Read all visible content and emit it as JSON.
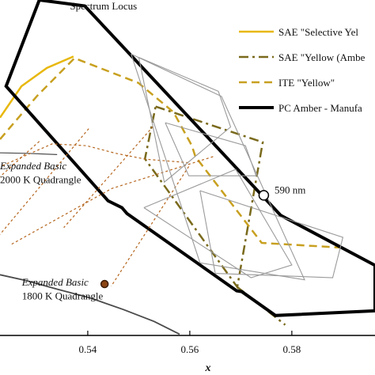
{
  "chart_data": {
    "type": "line",
    "title": "",
    "xlabel": "x",
    "ylabel": "",
    "xlim": [
      0.5228,
      0.5963
    ],
    "ylim": [
      0.3849,
      0.4639
    ],
    "x_ticks": [
      {
        "value": 0.54,
        "label": "0.54"
      },
      {
        "value": 0.56,
        "label": "0.56"
      },
      {
        "value": 0.58,
        "label": "0.58"
      }
    ],
    "legend_position": "top-right",
    "colors": {
      "sae_selective_yellow": "#e8b80c",
      "sae_yellow": "#7a6a1c",
      "ite_yellow": "#c8a020",
      "pc_amber": "#000000",
      "quadrangle": "#b5651d",
      "spectrum_locus": "#000000",
      "planckian": "#4a4a4a",
      "thin_boxes": "#9a9a9a",
      "marker_1800": "#8b4513"
    },
    "legend": [
      {
        "label": "SAE \"Selective Yel",
        "style": "solid",
        "color_key": "sae_selective_yellow",
        "width": 2.5
      },
      {
        "label": "SAE \"Yellow (Ambe",
        "style": "dashdot",
        "color_key": "sae_yellow",
        "width": 2.5
      },
      {
        "label": "ITE \"Yellow\"",
        "style": "dashed",
        "color_key": "ite_yellow",
        "width": 2.5
      },
      {
        "label": "PC Amber - Manufa",
        "style": "solid",
        "color_key": "pc_amber",
        "width": 4
      }
    ],
    "annotations": [
      {
        "text": "Spectrum Locus",
        "x": 0.5365,
        "y": 0.4617,
        "italic": false
      },
      {
        "text": "590 nm",
        "x": 0.5766,
        "y": 0.4183,
        "italic": false
      },
      {
        "text": "Expanded Basic",
        "x": 0.5228,
        "y": 0.424,
        "italic": true
      },
      {
        "text": "2000 K Quadrangle",
        "x": 0.5228,
        "y": 0.4208,
        "italic": false
      },
      {
        "text": "Expanded Basic",
        "x": 0.5271,
        "y": 0.3966,
        "italic": true
      },
      {
        "text": "1800 K Quadrangle",
        "x": 0.5271,
        "y": 0.3934,
        "italic": false
      }
    ],
    "series": [
      {
        "name": "SAE \"Selective Yellow\"",
        "style": "solid",
        "color_key": "sae_selective_yellow",
        "width": 2.5,
        "x": [
          0.5228,
          0.527,
          0.532,
          0.5372
        ],
        "y": [
          0.4362,
          0.4436,
          0.4479,
          0.4506
        ]
      },
      {
        "name": "SAE \"Yellow (Amber)\"",
        "style": "dashdot",
        "color_key": "sae_yellow",
        "width": 2.5,
        "x": [
          0.5533,
          0.5743,
          0.5693,
          0.5512,
          0.5533
        ],
        "y": [
          0.4388,
          0.4304,
          0.3963,
          0.4265,
          0.4388
        ]
      },
      {
        "name": "SAE \"Yellow (Amber)\" lower",
        "style": "dashdot",
        "color_key": "sae_yellow",
        "width": 2.5,
        "x": [
          0.5693,
          0.5787
        ],
        "y": [
          0.3963,
          0.3874
        ]
      },
      {
        "name": "ITE \"Yellow\"",
        "style": "dashed",
        "color_key": "ite_yellow",
        "width": 2.5,
        "x": [
          0.5228,
          0.53,
          0.5374,
          0.5499,
          0.5568,
          0.5604,
          0.5611,
          0.5741,
          0.5894
        ],
        "y": [
          0.4311,
          0.4412,
          0.4502,
          0.4444,
          0.4375,
          0.4296,
          0.427,
          0.4067,
          0.4056
        ]
      },
      {
        "name": "PC Amber - Manufacturer",
        "style": "solid",
        "color_key": "pc_amber",
        "width": 4,
        "x": [
          0.5305,
          0.5394,
          0.5778,
          0.5963,
          0.5963,
          0.5768,
          0.5702,
          0.5692,
          0.5477,
          0.5467,
          0.544,
          0.524,
          0.5305
        ],
        "y": [
          0.4639,
          0.4625,
          0.4132,
          0.4014,
          0.3907,
          0.3896,
          0.3952,
          0.3954,
          0.4136,
          0.415,
          0.4166,
          0.4436,
          0.4639
        ]
      },
      {
        "name": "Spectrum Locus",
        "style": "solid",
        "color_key": "spectrum_locus",
        "width": 1.2,
        "x": [
          0.5394,
          0.5778,
          0.5963
        ],
        "y": [
          0.4625,
          0.4132,
          0.4014
        ]
      },
      {
        "name": "Planckian locus",
        "style": "solid",
        "color_key": "planckian",
        "width": 1.8,
        "x": [
          0.5228,
          0.528,
          0.534,
          0.5403,
          0.547,
          0.553,
          0.558
        ],
        "y": [
          0.3992,
          0.3978,
          0.3958,
          0.3938,
          0.391,
          0.3882,
          0.3852
        ]
      },
      {
        "name": "Planckian locus upper",
        "style": "solid",
        "color_key": "planckian",
        "width": 1.2,
        "x": [
          0.5228,
          0.528,
          0.534
        ],
        "y": [
          0.4279,
          0.4278,
          0.4275
        ]
      },
      {
        "name": "2000 K Quadrangle",
        "style": "dotted",
        "color_key": "quadrangle",
        "width": 1.2,
        "x": [
          0.5233,
          0.533,
          0.5397,
          0.5455,
          0.5514,
          0.5598
        ],
        "y": [
          0.4249,
          0.43,
          0.4296,
          0.4278,
          0.4264,
          0.4256
        ]
      },
      {
        "name": "2000 K Quadrangle left",
        "style": "dotted",
        "color_key": "quadrangle",
        "width": 1.2,
        "x": [
          0.5305,
          0.5228
        ],
        "y": [
          0.4306,
          0.4223
        ]
      },
      {
        "name": "2000 K Quadrangle right",
        "style": "dotted",
        "color_key": "quadrangle",
        "width": 1.2,
        "x": [
          0.5528,
          0.5353
        ],
        "y": [
          0.4341,
          0.4103
        ]
      },
      {
        "name": "1800 K Quadrangle",
        "style": "dotted",
        "color_key": "quadrangle",
        "width": 1.2,
        "x": [
          0.5251,
          0.5447,
          0.5648
        ],
        "y": [
          0.4064,
          0.4195,
          0.4271
        ]
      },
      {
        "name": "1800 K Quadrangle right",
        "style": "dotted",
        "color_key": "quadrangle",
        "width": 1.2,
        "x": [
          0.5598,
          0.5446
        ],
        "y": [
          0.4247,
          0.3965
        ]
      },
      {
        "name": "1800 K Quadrangle left",
        "style": "dotted",
        "color_key": "quadrangle",
        "width": 1.2,
        "x": [
          0.5402,
          0.5228
        ],
        "y": [
          0.4336,
          0.4087
        ]
      },
      {
        "name": "Thin box A",
        "style": "solid",
        "color_key": "thin_boxes",
        "width": 1.1,
        "x": [
          0.5485,
          0.5662,
          0.5825,
          0.562,
          0.5485
        ],
        "y": [
          0.4512,
          0.4412,
          0.398,
          0.402,
          0.4512
        ]
      },
      {
        "name": "Thin box B",
        "style": "solid",
        "color_key": "thin_boxes",
        "width": 1.1,
        "x": [
          0.55,
          0.5656,
          0.568,
          0.555,
          0.55
        ],
        "y": [
          0.4504,
          0.4424,
          0.434,
          0.421,
          0.4504
        ]
      },
      {
        "name": "Thin box C",
        "style": "solid",
        "color_key": "thin_boxes",
        "width": 1.1,
        "x": [
          0.5552,
          0.5709,
          0.573,
          0.5598,
          0.5552
        ],
        "y": [
          0.435,
          0.4296,
          0.4225,
          0.4225,
          0.435
        ]
      },
      {
        "name": "Thin box D",
        "style": "solid",
        "color_key": "thin_boxes",
        "width": 1.1,
        "x": [
          0.551,
          0.569,
          0.58,
          0.572,
          0.551
        ],
        "y": [
          0.415,
          0.424,
          0.4015,
          0.3985,
          0.415
        ]
      },
      {
        "name": "Thin box E",
        "style": "solid",
        "color_key": "thin_boxes",
        "width": 1.1,
        "x": [
          0.562,
          0.59,
          0.588,
          0.565,
          0.562
        ],
        "y": [
          0.419,
          0.408,
          0.3985,
          0.3995,
          0.419
        ]
      }
    ],
    "markers": [
      {
        "name": "590 nm",
        "x": 0.5745,
        "y": 0.4179,
        "shape": "circle",
        "fill": "#ffffff",
        "stroke": "#000000",
        "radius": 6
      },
      {
        "name": "1800 K point",
        "x": 0.5433,
        "y": 0.397,
        "shape": "circle",
        "fill": "#8b4513",
        "stroke": "#3a1a00",
        "radius": 4.5
      }
    ]
  }
}
